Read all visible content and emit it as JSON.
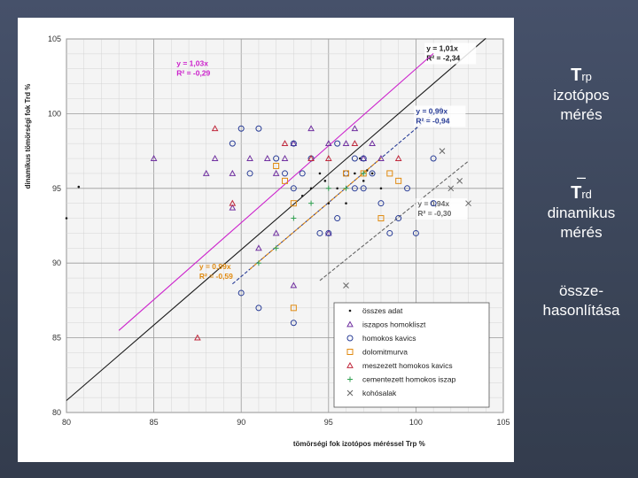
{
  "side_text": {
    "t1_main": "T",
    "t1_sub": "rp",
    "t1_line1": "izotópos",
    "t1_line2": "mérés",
    "dash": "–",
    "t2_main": "T",
    "t2_sub": "rd",
    "t2_line1": "dinamikus",
    "t2_line2": "mérés",
    "t3_line1": "össze-",
    "t3_line2": "hasonlítása"
  },
  "chart_data": {
    "type": "scatter",
    "xlabel": "tömörségi fok izotópos méréssel  Trp  %",
    "ylabel": "dinamikus tömörségi fok  Trd  %",
    "xlim": [
      80,
      105
    ],
    "ylim": [
      80,
      105
    ],
    "x_ticks": [
      "80",
      "85",
      "90",
      "95",
      "100",
      "105"
    ],
    "y_ticks": [
      "80",
      "85",
      "90",
      "95",
      "100",
      "105"
    ],
    "grid": true,
    "legend_position": "bottom-right",
    "colors": {
      "black": "#1a1a1a",
      "magenta": "#cc22cc",
      "blue": "#283c96",
      "orange": "#e08a10",
      "red": "#c0283c",
      "green": "#30a050",
      "gray": "#666666"
    },
    "legend": [
      {
        "label": "összes adat",
        "marker": "dot",
        "color": "#1a1a1a"
      },
      {
        "label": "iszapos homokliszt",
        "marker": "triangle",
        "color": "#7030a0"
      },
      {
        "label": "homokos kavics",
        "marker": "circle",
        "color": "#283c96"
      },
      {
        "label": "dolomitmurva",
        "marker": "square",
        "color": "#e08a10"
      },
      {
        "label": "meszezett homokos kavics",
        "marker": "triangle",
        "color": "#c0283c"
      },
      {
        "label": "cementezett homokos iszap",
        "marker": "plus",
        "color": "#30a050"
      },
      {
        "label": "kohósalak",
        "marker": "cross",
        "color": "#666666"
      }
    ],
    "regression_lines": [
      {
        "color": "#1a1a1a",
        "x_range": [
          80,
          104
        ],
        "slope": 1.01,
        "eq": "y = 1,01x",
        "r2": "R² = -2,34",
        "dash": "solid"
      },
      {
        "color": "#cc22cc",
        "x_range": [
          83,
          101
        ],
        "slope": 1.03,
        "eq": "y = 1,03x",
        "r2": "R² = -0,29",
        "dash": "solid"
      },
      {
        "color": "#283c96",
        "x_range": [
          89.5,
          101.5
        ],
        "slope": 0.99,
        "eq": "y = 0,99x",
        "r2": "R² = -0,94",
        "dash": "dashed"
      },
      {
        "color": "#666666",
        "x_range": [
          94.5,
          103
        ],
        "slope": 0.94,
        "eq": "y = 0,94x",
        "r2": "R² = -0,30",
        "dash": "dashed"
      },
      {
        "color": "#e08a10",
        "x_range": [
          90.5,
          98
        ],
        "slope": 0.99,
        "eq": "y = 0,99x",
        "r2": "R² = -0,59",
        "dash": "dashed"
      }
    ],
    "series": [
      {
        "name": "összes adat",
        "marker": "dot",
        "color": "#1a1a1a",
        "points": [
          [
            80.7,
            95.1
          ],
          [
            80,
            93
          ],
          [
            94,
            95
          ],
          [
            94.5,
            96
          ],
          [
            95.5,
            95
          ],
          [
            96,
            94
          ],
          [
            96.5,
            96
          ],
          [
            97,
            95.5
          ],
          [
            97.5,
            96
          ],
          [
            98,
            95
          ],
          [
            93.5,
            94.5
          ],
          [
            95,
            94
          ],
          [
            96.8,
            97
          ],
          [
            97.2,
            96.2
          ],
          [
            94.8,
            95.5
          ]
        ]
      },
      {
        "name": "iszapos homokliszt",
        "marker": "triangle",
        "color": "#7030a0",
        "points": [
          [
            85,
            97
          ],
          [
            88,
            96
          ],
          [
            88.5,
            97
          ],
          [
            89.5,
            96
          ],
          [
            90.5,
            97
          ],
          [
            91.5,
            97
          ],
          [
            92,
            96
          ],
          [
            92.5,
            97
          ],
          [
            93,
            98
          ],
          [
            94,
            99
          ],
          [
            95,
            98
          ],
          [
            96,
            98
          ],
          [
            96.5,
            99
          ],
          [
            97,
            97
          ],
          [
            92,
            92
          ],
          [
            93,
            88.5
          ],
          [
            89.5,
            93.7
          ],
          [
            91,
            91
          ],
          [
            95,
            92
          ],
          [
            98,
            97
          ],
          [
            97.5,
            98
          ]
        ]
      },
      {
        "name": "homokos kavics",
        "marker": "circle",
        "color": "#283c96",
        "points": [
          [
            89.5,
            98
          ],
          [
            90,
            99
          ],
          [
            90.5,
            96
          ],
          [
            91,
            99
          ],
          [
            92,
            97
          ],
          [
            92.5,
            96
          ],
          [
            93,
            95
          ],
          [
            93.5,
            96
          ],
          [
            94,
            97
          ],
          [
            94.5,
            92
          ],
          [
            95,
            92
          ],
          [
            95.5,
            98
          ],
          [
            96,
            96
          ],
          [
            96.5,
            95
          ],
          [
            97,
            97
          ],
          [
            97.5,
            96
          ],
          [
            98,
            94
          ],
          [
            98.5,
            92
          ],
          [
            99,
            93
          ],
          [
            100,
            92
          ],
          [
            101,
            97
          ],
          [
            101,
            94
          ],
          [
            93,
            98
          ],
          [
            95.5,
            93
          ],
          [
            96.5,
            97
          ],
          [
            90,
            88
          ],
          [
            91,
            87
          ],
          [
            93,
            86
          ],
          [
            97,
            95
          ],
          [
            99.5,
            95
          ]
        ]
      },
      {
        "name": "dolomitmurva",
        "marker": "square",
        "color": "#e08a10",
        "points": [
          [
            92,
            96.5
          ],
          [
            93,
            94
          ],
          [
            96,
            96
          ],
          [
            97,
            96
          ],
          [
            98.5,
            96
          ],
          [
            99,
            95.5
          ],
          [
            92.5,
            95.5
          ],
          [
            98,
            93
          ],
          [
            93,
            87
          ]
        ]
      },
      {
        "name": "meszezett homokos kavics",
        "marker": "triangle",
        "color": "#c0283c",
        "points": [
          [
            87.5,
            85
          ],
          [
            88.5,
            99
          ],
          [
            92.5,
            98
          ],
          [
            94,
            97
          ],
          [
            96.5,
            98
          ],
          [
            99,
            97
          ],
          [
            89.5,
            94
          ],
          [
            95,
            97
          ]
        ]
      },
      {
        "name": "cementezett homokos iszap",
        "marker": "plus",
        "color": "#30a050",
        "points": [
          [
            91,
            90
          ],
          [
            92,
            91
          ],
          [
            93,
            93
          ],
          [
            94,
            94
          ],
          [
            95,
            95
          ],
          [
            96,
            95
          ],
          [
            97,
            96
          ]
        ]
      },
      {
        "name": "kohósalak",
        "marker": "cross",
        "color": "#666666",
        "points": [
          [
            96,
            88.5
          ],
          [
            101.5,
            97.5
          ],
          [
            102,
            95
          ],
          [
            102.5,
            95.5
          ],
          [
            103,
            94
          ]
        ]
      }
    ]
  }
}
